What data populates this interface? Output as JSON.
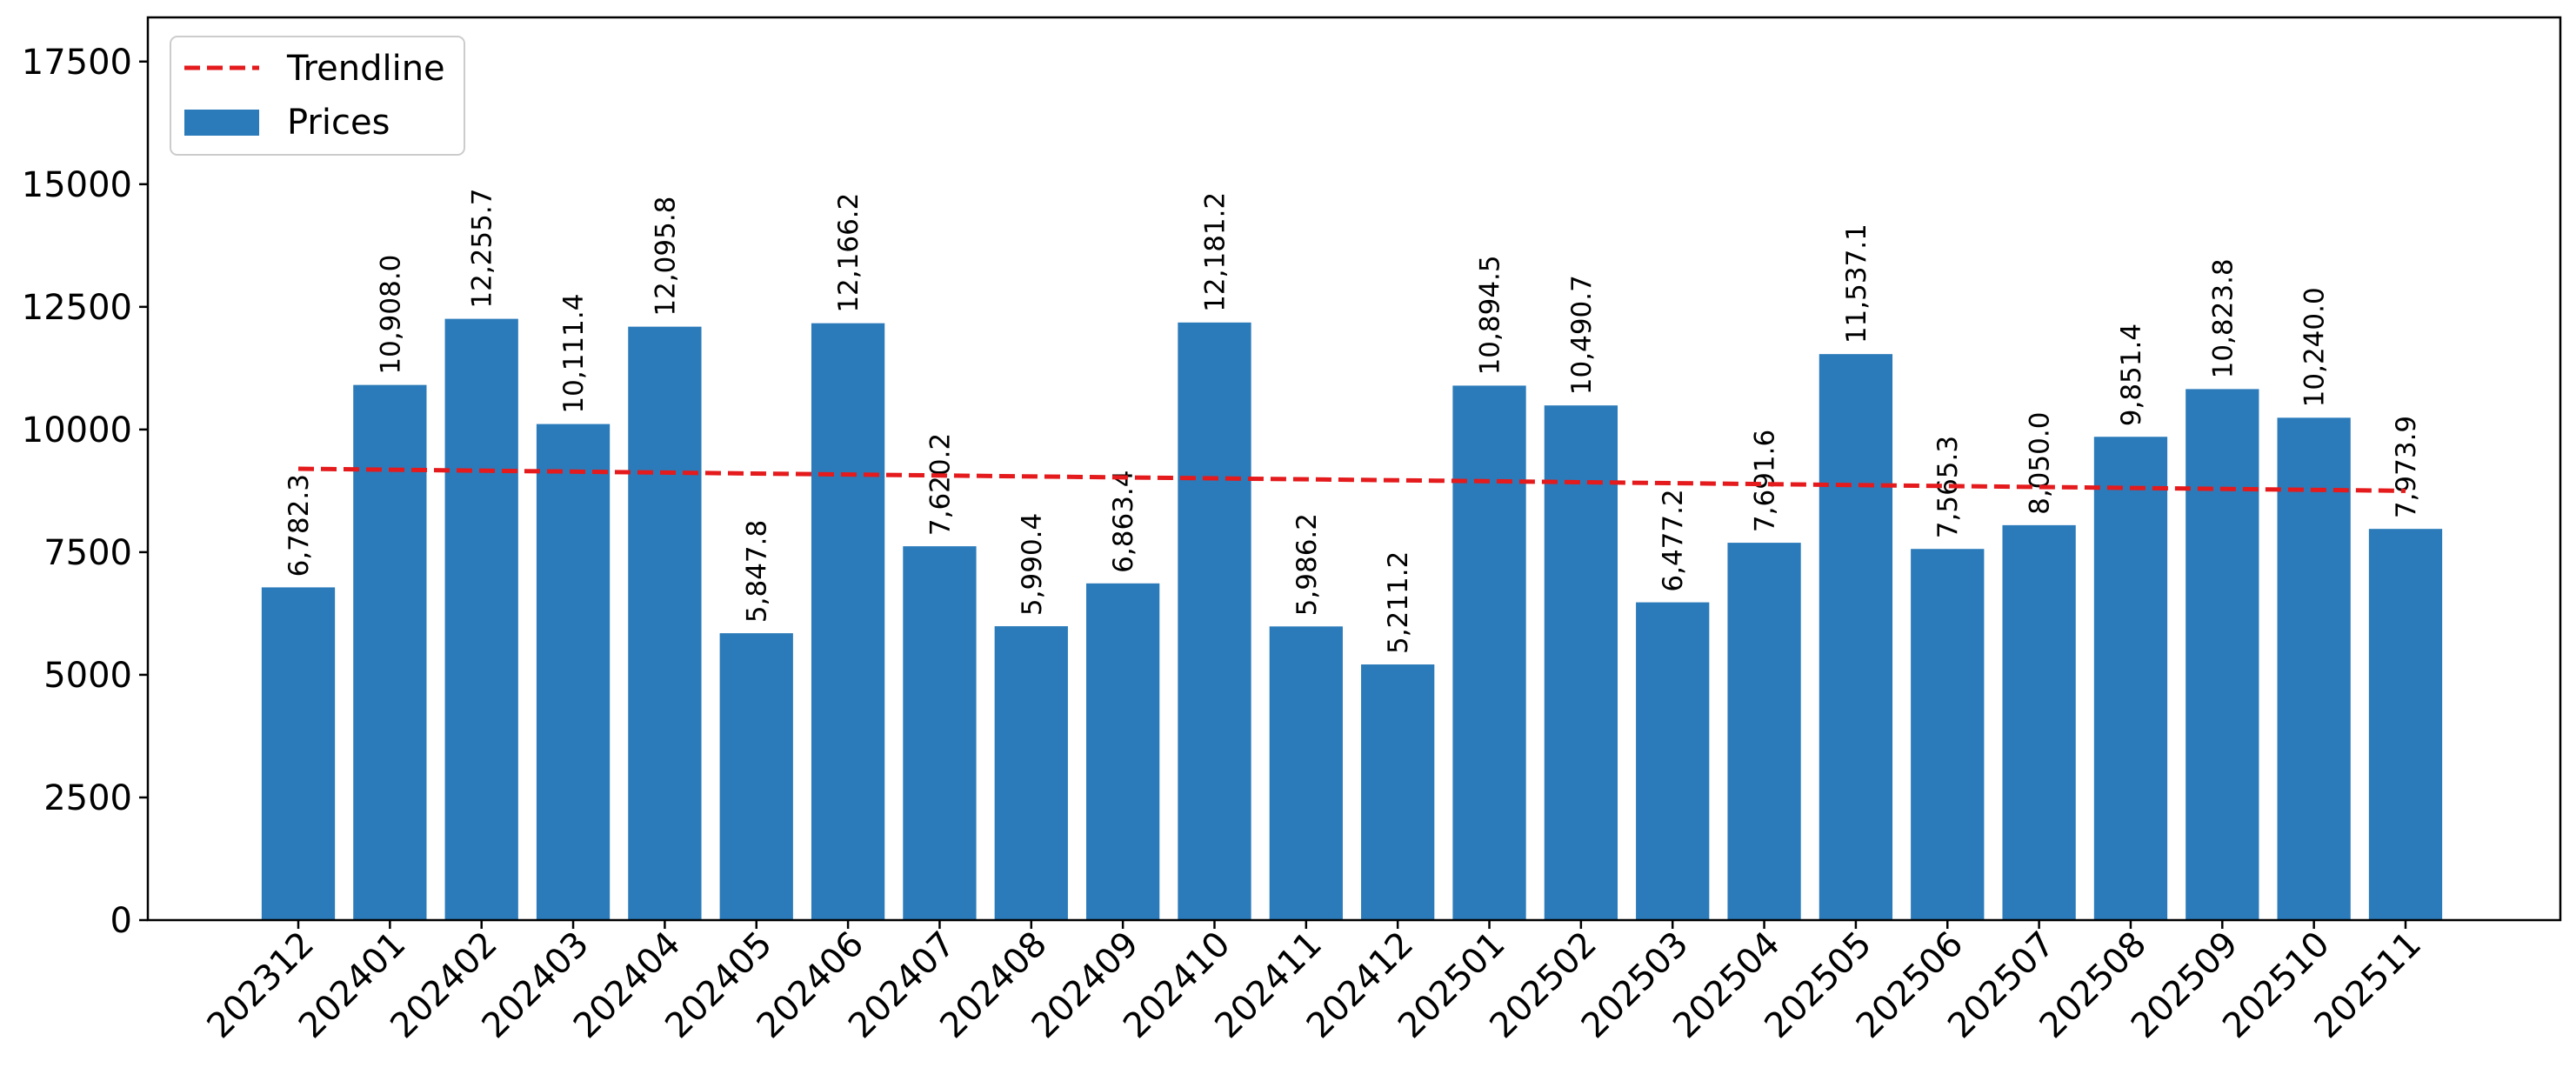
{
  "chart_data": {
    "type": "bar",
    "categories": [
      "202312",
      "202401",
      "202402",
      "202403",
      "202404",
      "202405",
      "202406",
      "202407",
      "202408",
      "202409",
      "202410",
      "202411",
      "202412",
      "202501",
      "202502",
      "202503",
      "202504",
      "202505",
      "202506",
      "202507",
      "202508",
      "202509",
      "202510",
      "202511"
    ],
    "series": [
      {
        "name": "Prices",
        "values": [
          6782.3,
          10908.0,
          12255.7,
          10111.4,
          12095.8,
          5847.8,
          12166.2,
          7620.2,
          5990.4,
          6863.4,
          12181.2,
          5986.2,
          5211.2,
          10894.5,
          10490.7,
          6477.2,
          7691.6,
          11537.1,
          7565.3,
          8050.0,
          9851.4,
          10823.8,
          10240.0,
          7973.9
        ],
        "labels": [
          "6,782.3",
          "10,908.0",
          "12,255.7",
          "10,111.4",
          "12,095.8",
          "5,847.8",
          "12,166.2",
          "7,620.2",
          "5,990.4",
          "6,863.4",
          "12,181.2",
          "5,986.2",
          "5,211.2",
          "10,894.5",
          "10,490.7",
          "6,477.2",
          "7,691.6",
          "11,537.1",
          "7,565.3",
          "8,050.0",
          "9,851.4",
          "10,823.8",
          "10,240.0",
          "7,973.9"
        ],
        "color": "#2b7bba"
      }
    ],
    "trendline": {
      "name": "Trendline",
      "start": 9200,
      "end": 8750,
      "color": "#e41a1c",
      "style": "dashed"
    },
    "ylim": [
      0,
      18400
    ],
    "yticks": [
      0,
      2500,
      5000,
      7500,
      10000,
      12500,
      15000,
      17500
    ],
    "xlabel": "",
    "ylabel": "",
    "grid": false,
    "legend": {
      "placement": "top-left",
      "entries": [
        "Trendline",
        "Prices"
      ]
    }
  }
}
